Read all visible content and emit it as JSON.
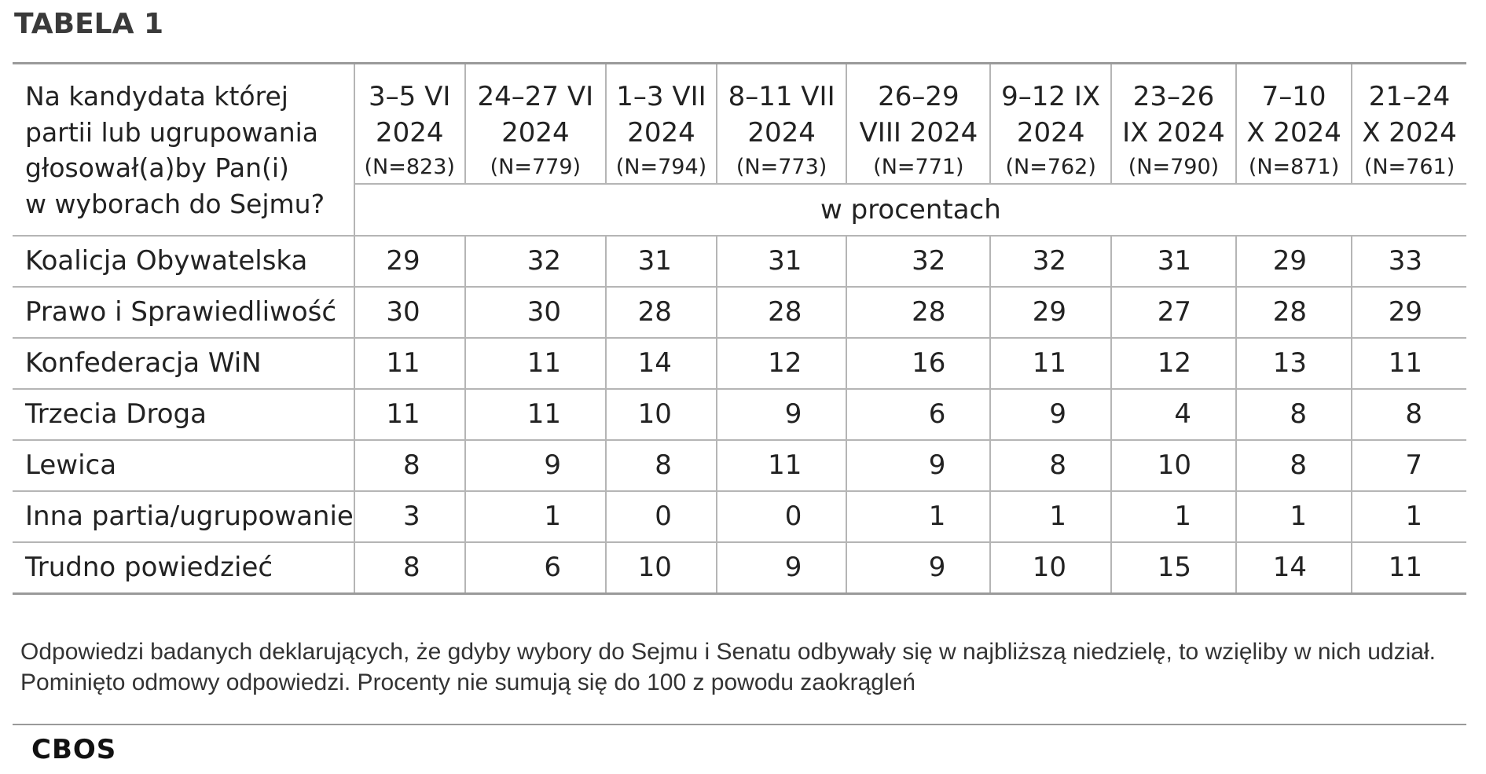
{
  "title": "TABELA 1",
  "table": {
    "question_lines": [
      "Na kandydata której",
      "partii lub ugrupowania",
      "głosował(a)by Pan(i)",
      "w wyborach do Sejmu?"
    ],
    "periods": [
      {
        "line1": "3–5 VI",
        "line2": "2024",
        "n": "(N=823)"
      },
      {
        "line1": "24–27 VI",
        "line2": "2024",
        "n": "(N=779)"
      },
      {
        "line1": "1–3 VII",
        "line2": "2024",
        "n": "(N=794)"
      },
      {
        "line1": "8–11 VII",
        "line2": "2024",
        "n": "(N=773)"
      },
      {
        "line1": "26–29",
        "line2": "VIII 2024",
        "n": "(N=771)"
      },
      {
        "line1": "9–12 IX",
        "line2": "2024",
        "n": "(N=762)"
      },
      {
        "line1": "23–26",
        "line2": "IX 2024",
        "n": "(N=790)"
      },
      {
        "line1": "7–10",
        "line2": "X 2024",
        "n": "(N=871)"
      },
      {
        "line1": "21–24",
        "line2": "X 2024",
        "n": "(N=761)"
      }
    ],
    "unit": "w procentach",
    "rows": [
      {
        "label": "Koalicja Obywatelska",
        "values": [
          "29",
          "32",
          "31",
          "31",
          "32",
          "32",
          "31",
          "29",
          "33"
        ]
      },
      {
        "label": "Prawo i Sprawiedliwość",
        "values": [
          "30",
          "30",
          "28",
          "28",
          "28",
          "29",
          "27",
          "28",
          "29"
        ]
      },
      {
        "label": "Konfederacja WiN",
        "values": [
          "11",
          "11",
          "14",
          "12",
          "16",
          "11",
          "12",
          "13",
          "11"
        ]
      },
      {
        "label": "Trzecia Droga",
        "values": [
          "11",
          "11",
          "10",
          "9",
          "6",
          "9",
          "4",
          "8",
          "8"
        ]
      },
      {
        "label": "Lewica",
        "values": [
          "8",
          "9",
          "8",
          "11",
          "9",
          "8",
          "10",
          "8",
          "7"
        ]
      },
      {
        "label": "Inna partia/ugrupowanie",
        "values": [
          "3",
          "1",
          "0",
          "0",
          "1",
          "1",
          "1",
          "1",
          "1"
        ]
      },
      {
        "label": "Trudno powiedzieć",
        "values": [
          "8",
          "6",
          "10",
          "9",
          "9",
          "10",
          "15",
          "14",
          "11"
        ]
      }
    ]
  },
  "note": "Odpowiedzi badanych deklarujących, że gdyby wybory do Sejmu i Senatu odbywały się w najbliższą niedzielę, to wzięliby w nich udział. Pominięto odmowy odpowiedzi. Procenty nie sumują się do 100 z powodu zaokrągleń",
  "source": "CBOS",
  "colors": {
    "text": "#222222",
    "title": "#3a3a3a",
    "grid": "#b5b5b5",
    "rule": "#9a9a9a"
  }
}
